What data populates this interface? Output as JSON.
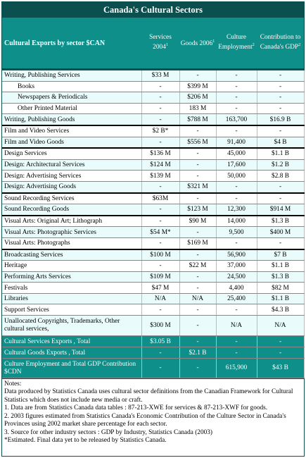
{
  "title": "Canada's Cultural Sectors",
  "header": {
    "col0": "Cultural Exports by sector $CAN",
    "col1": "Services 2004",
    "col1_sup": "1",
    "col2": "Goods 2006",
    "col2_sup": "1",
    "col3": "Culture Employment",
    "col3_sup": "2",
    "col4": "Contribution to Canada's GDP",
    "col4_sup": "2"
  },
  "rows": [
    {
      "label": "Writing, Publishing Services",
      "services": "$33 M",
      "goods": "-",
      "employment": "-",
      "gdp": "-",
      "style": "alt"
    },
    {
      "label": "Books",
      "services": "-",
      "goods": "$399 M",
      "employment": "-",
      "gdp": "-",
      "style": "wht",
      "sub": true
    },
    {
      "label": "Newspapers & Periodicals",
      "services": "-",
      "goods": "$206 M",
      "employment": "-",
      "gdp": "-",
      "style": "alt",
      "sub": true
    },
    {
      "label": "Other Printed Material",
      "services": "-",
      "goods": "183 M",
      "employment": "-",
      "gdp": "-",
      "style": "wht",
      "sub": true
    },
    {
      "label": "Writing, Publishing Goods",
      "services": "-",
      "goods": "$788 M",
      "employment": "163,700",
      "gdp": "$16.9 B",
      "style": "alt"
    },
    {
      "label": "Film and Video Services",
      "services": "$2 B*",
      "goods": "-",
      "employment": "-",
      "gdp": "-",
      "style": "wht",
      "thick": true
    },
    {
      "label": "Film and Video Goods",
      "services": "-",
      "goods": "$556 M",
      "employment": "91,400",
      "gdp": "$4 B",
      "style": "alt"
    },
    {
      "label": "Design Services",
      "services": "$136 M",
      "goods": "-",
      "employment": "45,000",
      "gdp": "$1.1 B",
      "style": "wht",
      "thick": true
    },
    {
      "label": "Design: Architectural Services",
      "services": "$124 M",
      "goods": "-",
      "employment": "17,600",
      "gdp": "$1.2 B",
      "style": "alt"
    },
    {
      "label": "Design: Advertising Services",
      "services": "$139 M",
      "goods": "-",
      "employment": "50,000",
      "gdp": "$2.8 B",
      "style": "wht"
    },
    {
      "label": "Design: Advertising Goods",
      "services": "-",
      "goods": "$321 M",
      "employment": "-",
      "gdp": "-",
      "style": "alt"
    },
    {
      "label": "Sound Recording Services",
      "services": "$63M",
      "goods": "-",
      "employment": "-",
      "gdp": "-",
      "style": "wht",
      "thick": true
    },
    {
      "label": "Sound Recording Goods",
      "services": "-",
      "goods": "$123 M",
      "employment": "12,300",
      "gdp": "$914 M",
      "style": "alt"
    },
    {
      "label": "Visual Arts: Original Art; Lithograph",
      "services": "-",
      "goods": "$90 M",
      "employment": "14,000",
      "gdp": "$1.3 B",
      "style": "wht",
      "thick": true
    },
    {
      "label": "Visual Arts: Photographic Services",
      "services": "$54 M*",
      "goods": "-",
      "employment": "9,500",
      "gdp": "$400 M",
      "style": "alt"
    },
    {
      "label": "Visual Arts: Photographs",
      "services": "-",
      "goods": "$169 M",
      "employment": "-",
      "gdp": "-",
      "style": "wht"
    },
    {
      "label": "Broadcasting Services",
      "services": "$100 M",
      "goods": "-",
      "employment": "56,900",
      "gdp": "$7 B",
      "style": "alt",
      "thick": true
    },
    {
      "label": "Heritage",
      "services": "-",
      "goods": "$22 M",
      "employment": "37,000",
      "gdp": "$1.1 B",
      "style": "wht"
    },
    {
      "label": "Performing Arts Services",
      "services": "$109 M",
      "goods": "-",
      "employment": "24,500",
      "gdp": "$1.3 B",
      "style": "alt"
    },
    {
      "label": "Festivals",
      "services": "$47 M",
      "goods": "-",
      "employment": "4,400",
      "gdp": "$82 M",
      "style": "wht"
    },
    {
      "label": "Libraries",
      "services": "N/A",
      "goods": "N/A",
      "employment": "25,400",
      "gdp": "$1.1 B",
      "style": "alt"
    },
    {
      "label": "Support Services",
      "services": "-",
      "goods": "-",
      "employment": "-",
      "gdp": "$4.3 B",
      "style": "wht"
    },
    {
      "label": "Unallocated Copyrights, Trademarks, Other cultural services,",
      "services": "$300 M",
      "goods": "-",
      "employment": "N/A",
      "gdp": "N/A",
      "style": "alt",
      "tall": true
    }
  ],
  "totals": [
    {
      "label": "Cultural Services Exports , Total",
      "services": "$3.05 B",
      "goods": "-",
      "employment": "-",
      "gdp": "-"
    },
    {
      "label": "Cultural Goods Exports , Total",
      "services": "-",
      "goods": "$2.1 B",
      "employment": "-",
      "gdp": "-"
    }
  ],
  "grand_total": {
    "label": "Culture Employment and Total GDP Contribution $CDN",
    "services": "-",
    "goods": "-",
    "employment": "615,900",
    "gdp": "$43 B"
  },
  "notes": [
    "Notes:",
    "Data produced by Statistics Canada uses cultural sector definitions from the Canadian Framework for Cultural Statistics which does not include new media or craft.",
    "1. Data are from Statistics Canada data tables : 87-213-XWE for services & 87-213-XWF for goods.",
    "2. 2003 figures estimated from Statistics Canada's Economic Contribution of the Culture Sector in Canada's Provinces using 2002 market share percentage for each sector.",
    "3. Source for other industry sectors : GDP by Industry, Statistics Canada (2003)",
    "*Estimated. Final data yet to be released by Statistics Canada."
  ]
}
